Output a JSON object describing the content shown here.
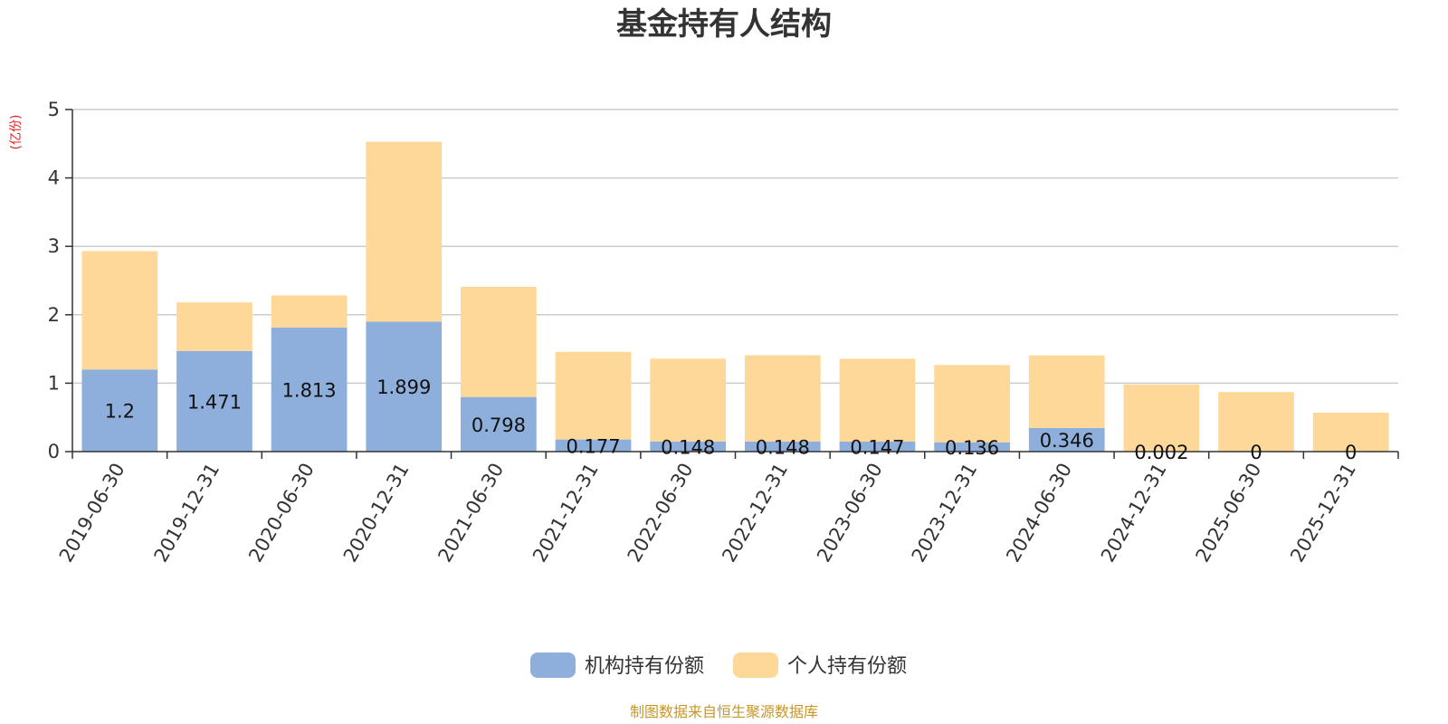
{
  "chart_data": {
    "type": "bar",
    "stacked": true,
    "title": "基金持有人结构",
    "unit_label": "(亿份)",
    "categories": [
      "2019-06-30",
      "2019-12-31",
      "2020-06-30",
      "2020-12-31",
      "2021-06-30",
      "2021-12-31",
      "2022-06-30",
      "2022-12-31",
      "2023-06-30",
      "2023-12-31",
      "2024-06-30",
      "2024-12-31",
      "2025-06-30",
      "2025-12-31"
    ],
    "series": [
      {
        "name": "机构持有份额",
        "color": "#8eaedb",
        "values": [
          1.2,
          1.471,
          1.813,
          1.899,
          0.798,
          0.177,
          0.148,
          0.148,
          0.147,
          0.136,
          0.346,
          0.002,
          0,
          0
        ],
        "labels": [
          "1.2",
          "1.471",
          "1.813",
          "1.899",
          "0.798",
          "0.177",
          "0.148",
          "0.148",
          "0.147",
          "0.136",
          "0.346",
          "0.002",
          "0",
          "0"
        ]
      },
      {
        "name": "个人持有份额",
        "color": "#fed899",
        "values": [
          1.73,
          0.71,
          0.47,
          2.63,
          1.61,
          1.28,
          1.21,
          1.26,
          1.21,
          1.13,
          1.06,
          0.98,
          0.87,
          0.57
        ]
      }
    ],
    "ylim": [
      0,
      5
    ],
    "yticks": [
      "0",
      "1",
      "2",
      "3",
      "4",
      "5"
    ],
    "grid": true,
    "legend_position": "bottom-center",
    "source": "制图数据来自恒生聚源数据库"
  }
}
